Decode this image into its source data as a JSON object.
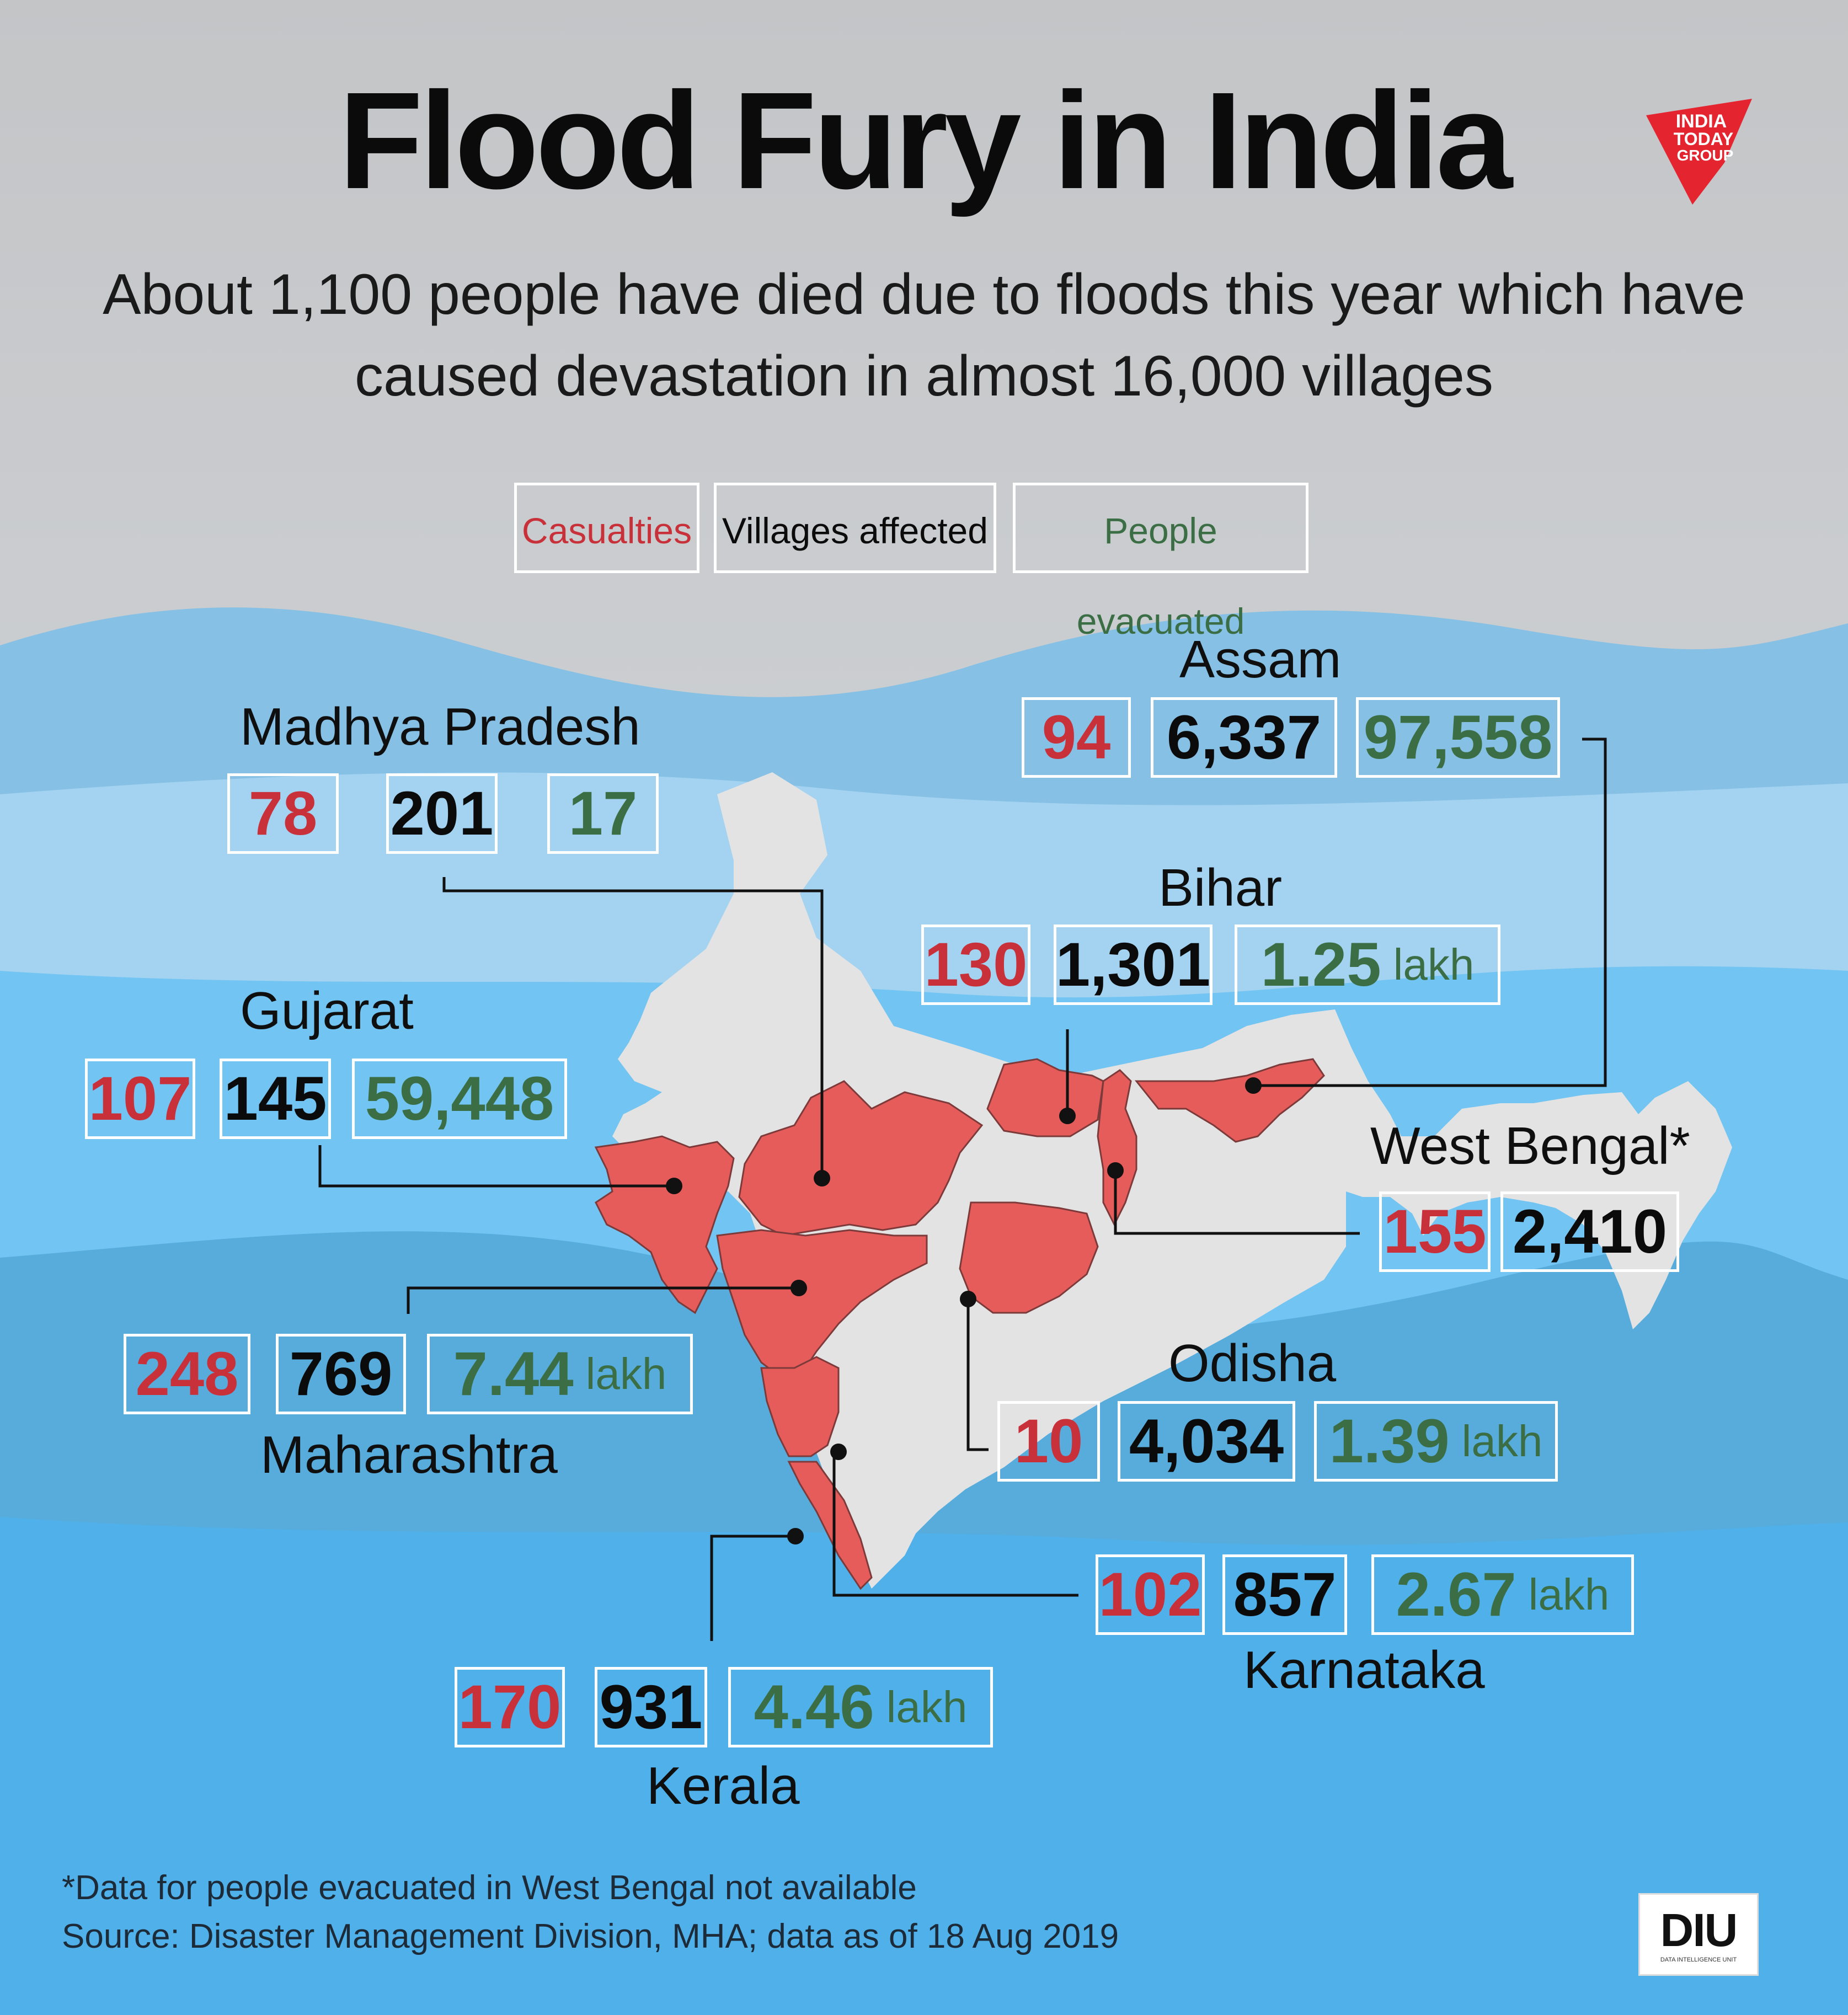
{
  "title": "Flood Fury in India",
  "subtitle_lines": [
    "About 1,100 people have died due to floods this year which have",
    "caused devastation in almost 16,000 villages"
  ],
  "legend": {
    "casualties": "Casualties",
    "villages": "Villages affected",
    "evacuated": "People evacuated"
  },
  "unit": "lakh",
  "states": {
    "madhya_pradesh": {
      "name": "Madhya Pradesh",
      "casualties": "78",
      "villages": "201",
      "evacuated": "17"
    },
    "gujarat": {
      "name": "Gujarat",
      "casualties": "107",
      "villages": "145",
      "evacuated": "59,448"
    },
    "maharashtra": {
      "name": "Maharashtra",
      "casualties": "248",
      "villages": "769",
      "evacuated": "7.44"
    },
    "kerala": {
      "name": "Kerala",
      "casualties": "170",
      "villages": "931",
      "evacuated": "4.46"
    },
    "assam": {
      "name": "Assam",
      "casualties": "94",
      "villages": "6,337",
      "evacuated": "97,558"
    },
    "bihar": {
      "name": "Bihar",
      "casualties": "130",
      "villages": "1,301",
      "evacuated": "1.25"
    },
    "west_bengal": {
      "name": "West Bengal*",
      "casualties": "155",
      "villages": "2,410"
    },
    "odisha": {
      "name": "Odisha",
      "casualties": "10",
      "villages": "4,034",
      "evacuated": "1.39"
    },
    "karnataka": {
      "name": "Karnataka",
      "casualties": "102",
      "villages": "857",
      "evacuated": "2.67"
    }
  },
  "footnote": "*Data for people evacuated in West Bengal not available",
  "source": "Source: Disaster Management Division, MHA;  data as of 18 Aug 2019",
  "logos": {
    "publisher": [
      "INDIA",
      "TODAY",
      "GROUP"
    ],
    "unit_mark": "DIU",
    "unit_name": "DATA INTELLIGENCE UNIT"
  },
  "colors": {
    "casualties": "#c8313a",
    "villages": "#0b0b0b",
    "evacuated": "#3c6e45",
    "flood_state": "#e65c5a",
    "map_land": "#e3e3e3"
  }
}
